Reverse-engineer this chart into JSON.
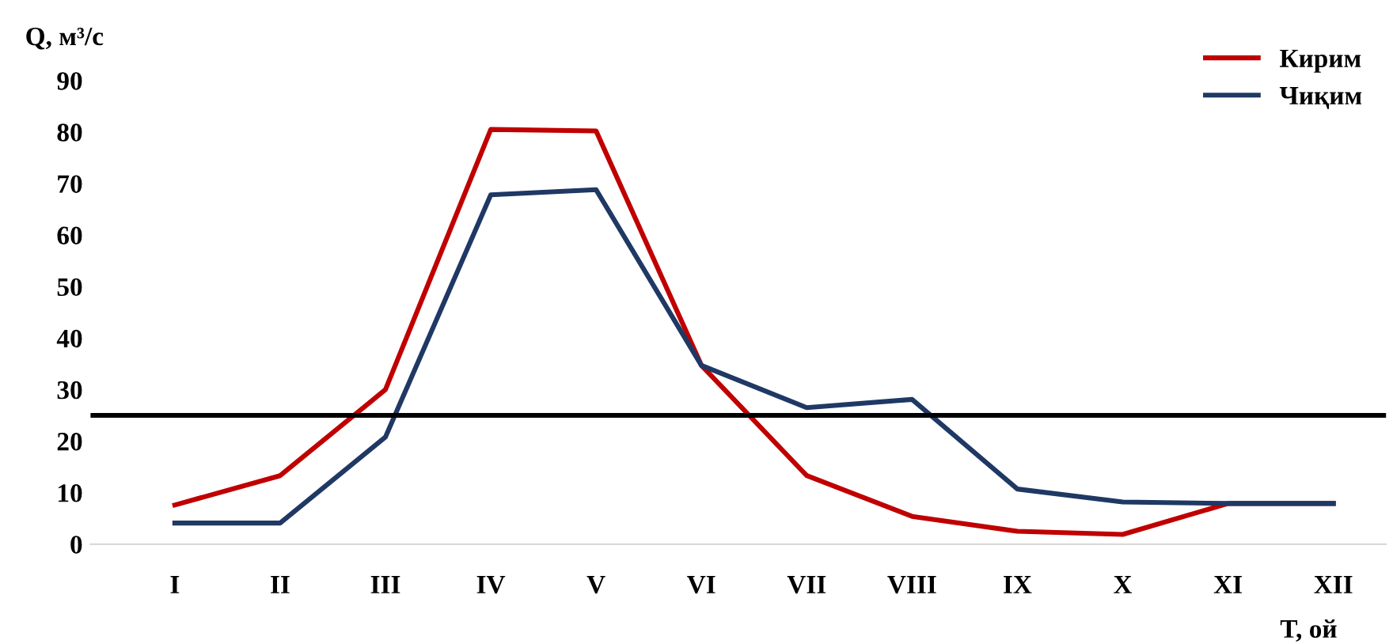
{
  "chart_data": {
    "type": "line",
    "ylabel": "Q, м³/с",
    "xlabel": "T, ой",
    "categories": [
      "I",
      "II",
      "III",
      "IV",
      "V",
      "VI",
      "VII",
      "VIII",
      "IX",
      "X",
      "XI",
      "XII"
    ],
    "series": [
      {
        "name": "Кирим",
        "color": "#c00000",
        "values": [
          7.6,
          13.3,
          30,
          80.5,
          80.2,
          34.7,
          13.3,
          5.4,
          2.5,
          1.9,
          7.9,
          7.9
        ]
      },
      {
        "name": "Чиқим",
        "color": "#1f3864",
        "values": [
          4.1,
          4.1,
          20.8,
          67.8,
          68.8,
          34.7,
          26.5,
          28.1,
          10.7,
          8.2,
          7.9,
          7.9
        ]
      }
    ],
    "ylim": [
      0,
      90
    ],
    "yticks": [
      0,
      10,
      20,
      30,
      40,
      50,
      60,
      70,
      80,
      90
    ],
    "ref_lines": [
      {
        "axis": "y",
        "value": 25,
        "color": "#000000"
      }
    ],
    "legend": "top right",
    "grid": false,
    "marker": "none",
    "line_style": "solid"
  }
}
